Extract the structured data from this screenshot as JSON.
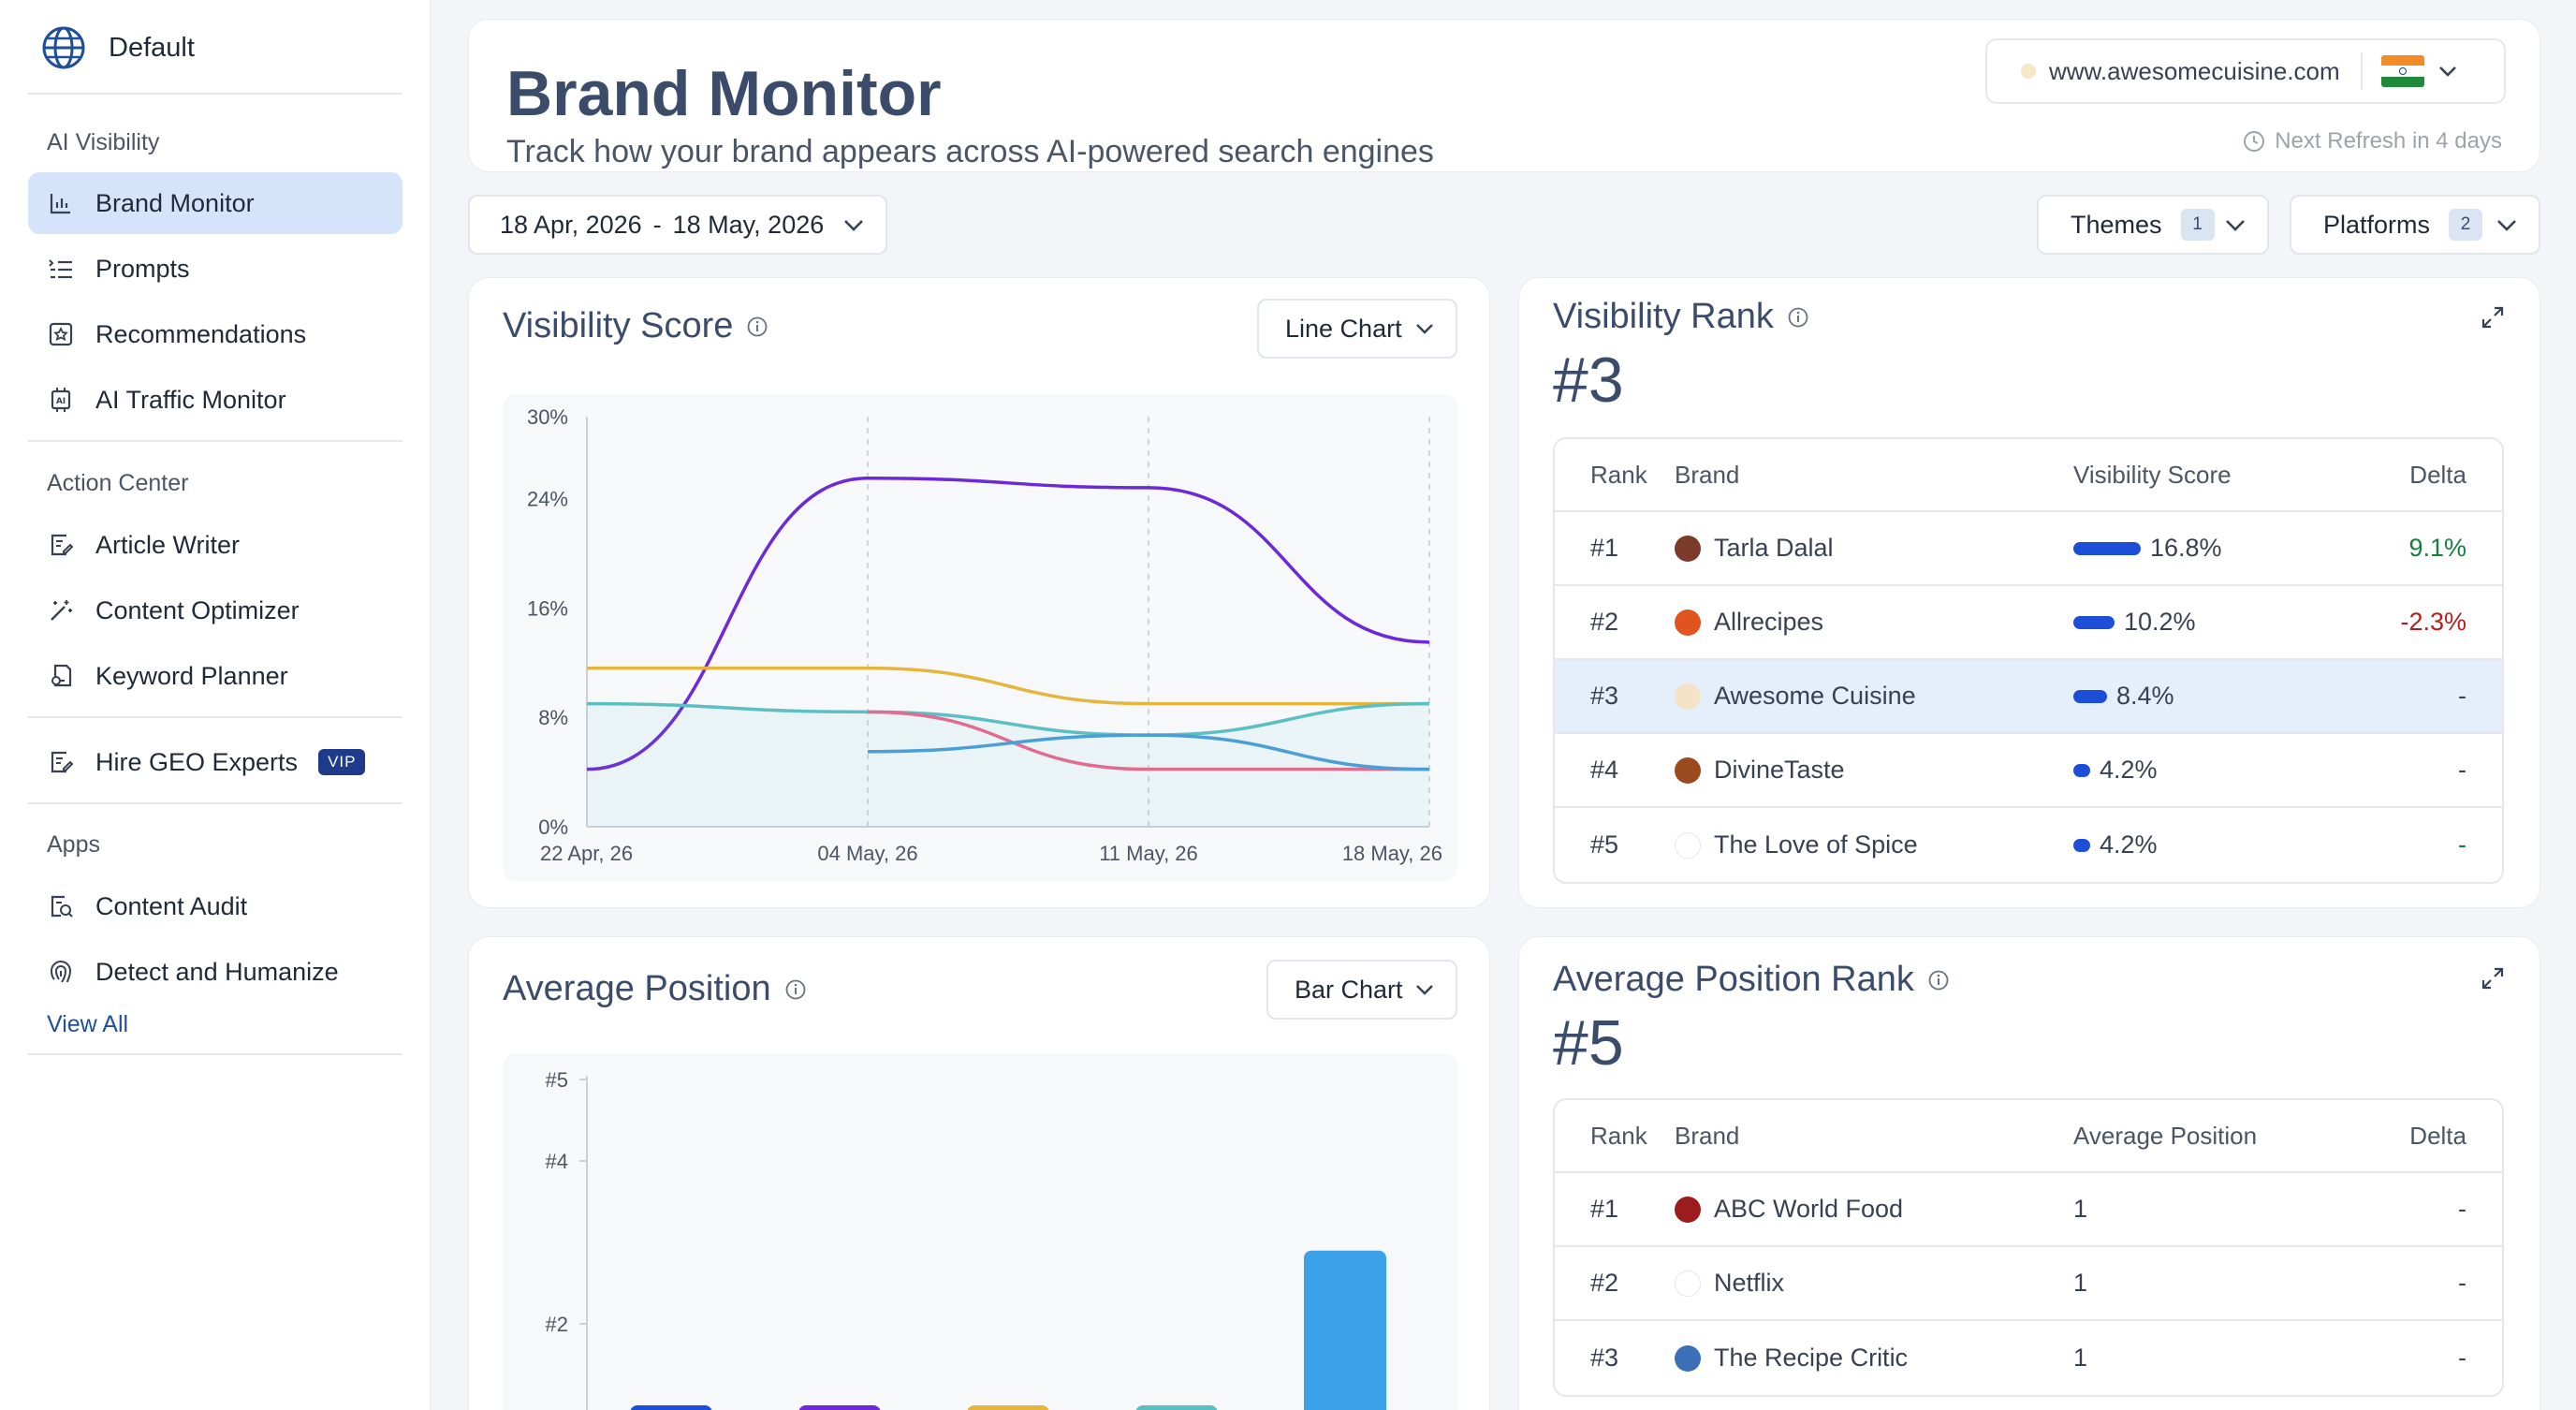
{
  "workspace": {
    "name": "Default"
  },
  "sidebar": {
    "sections": [
      {
        "title": "AI Visibility",
        "items": [
          {
            "label": "Brand Monitor",
            "icon": "bar-chart-icon",
            "active": true
          },
          {
            "label": "Prompts",
            "icon": "list-icon"
          },
          {
            "label": "Recommendations",
            "icon": "badge-icon"
          },
          {
            "label": "AI Traffic Monitor",
            "icon": "ai-chip-icon"
          }
        ]
      },
      {
        "title": "Action Center",
        "items": [
          {
            "label": "Article Writer",
            "icon": "edit-doc-icon"
          },
          {
            "label": "Content Optimizer",
            "icon": "magic-wand-icon"
          },
          {
            "label": "Keyword Planner",
            "icon": "key-doc-icon"
          }
        ]
      },
      {
        "title": "",
        "items": [
          {
            "label": "Hire GEO Experts",
            "icon": "edit-doc-icon",
            "badge": "VIP"
          }
        ]
      },
      {
        "title": "Apps",
        "items": [
          {
            "label": "Content Audit",
            "icon": "audit-icon"
          },
          {
            "label": "Detect and Humanize",
            "icon": "fingerprint-icon"
          }
        ]
      }
    ],
    "view_all": "View All"
  },
  "header": {
    "title": "Brand Monitor",
    "subtitle": "Track how your brand appears across AI-powered search engines",
    "domain": "www.awesomecuisine.com",
    "refresh": "Next Refresh in 4 days"
  },
  "filters": {
    "date_start": "18 Apr, 2026",
    "date_sep": "-",
    "date_end": "18 May, 2026",
    "themes_label": "Themes",
    "themes_count": "1",
    "platforms_label": "Platforms",
    "platforms_count": "2"
  },
  "visibility_score": {
    "title": "Visibility Score",
    "chart_type": "Line Chart"
  },
  "visibility_rank": {
    "title": "Visibility Rank",
    "rank": "#3",
    "columns": [
      "Rank",
      "Brand",
      "Visibility Score",
      "Delta"
    ],
    "rows": [
      {
        "rank": "#1",
        "brand": "Tarla Dalal",
        "score": "16.8%",
        "score_value": 16.8,
        "delta": "9.1%",
        "delta_type": "pos",
        "logo_color": "#7c3a2a"
      },
      {
        "rank": "#2",
        "brand": "Allrecipes",
        "score": "10.2%",
        "score_value": 10.2,
        "delta": "-2.3%",
        "delta_type": "neg",
        "logo_color": "#e2541f"
      },
      {
        "rank": "#3",
        "brand": "Awesome Cuisine",
        "score": "8.4%",
        "score_value": 8.4,
        "delta": "-",
        "delta_type": "none",
        "highlight": true,
        "logo_color": "#f3e2c4"
      },
      {
        "rank": "#4",
        "brand": "DivineTaste",
        "score": "4.2%",
        "score_value": 4.2,
        "delta": "-",
        "delta_type": "none",
        "logo_color": "#9a4a1f"
      },
      {
        "rank": "#5",
        "brand": "The Love of Spice",
        "score": "4.2%",
        "score_value": 4.2,
        "delta": "-",
        "delta_type": "pos",
        "logo_color": "#ffffff"
      }
    ]
  },
  "average_position": {
    "title": "Average Position",
    "chart_type": "Bar Chart"
  },
  "average_position_rank": {
    "title": "Average Position Rank",
    "rank": "#5",
    "columns": [
      "Rank",
      "Brand",
      "Average Position",
      "Delta"
    ],
    "rows": [
      {
        "rank": "#1",
        "brand": "ABC World Food",
        "score": "1",
        "delta": "-",
        "logo_color": "#9b1c1c"
      },
      {
        "rank": "#2",
        "brand": "Netflix",
        "score": "1",
        "delta": "-",
        "logo_color": "#ffffff"
      },
      {
        "rank": "#3",
        "brand": "The Recipe Critic",
        "score": "1",
        "delta": "-",
        "logo_color": "#3b6fb6"
      }
    ]
  },
  "chart_data": [
    {
      "type": "line",
      "x": [
        "22 Apr, 26",
        "04 May, 26",
        "11 May, 26",
        "18 May, 26"
      ],
      "y_ticks": [
        "0%",
        "8%",
        "16%",
        "24%",
        "30%"
      ],
      "ylim": [
        0,
        30
      ],
      "series": [
        {
          "color": "#6d28d9",
          "values": [
            4.2,
            25.5,
            24.8,
            13.5
          ]
        },
        {
          "color": "#e5b53c",
          "values": [
            11.6,
            11.6,
            9.0,
            9.0
          ]
        },
        {
          "color": "#5bbfc4",
          "values": [
            9.0,
            8.4,
            6.7,
            9.0
          ]
        },
        {
          "color": "#e06c8f",
          "values": [
            null,
            8.4,
            4.2,
            4.2
          ]
        },
        {
          "color": "#4a9fd6",
          "values": [
            null,
            5.5,
            6.7,
            4.2
          ]
        }
      ]
    },
    {
      "type": "bar",
      "y_ticks": [
        "#2",
        "#4",
        "#5"
      ],
      "values": [
        {
          "color": "#1d4ed8",
          "value": 1
        },
        {
          "color": "#6d28d9",
          "value": 1
        },
        {
          "color": "#e5b53c",
          "value": 1
        },
        {
          "color": "#5bbfc4",
          "value": 1
        },
        {
          "color": "#3ba1e8",
          "value": 2.9
        }
      ]
    }
  ],
  "colors": {
    "accent": "#1d4ed8",
    "active_nav": "#d6e4fb",
    "title": "#3b4c6b"
  }
}
